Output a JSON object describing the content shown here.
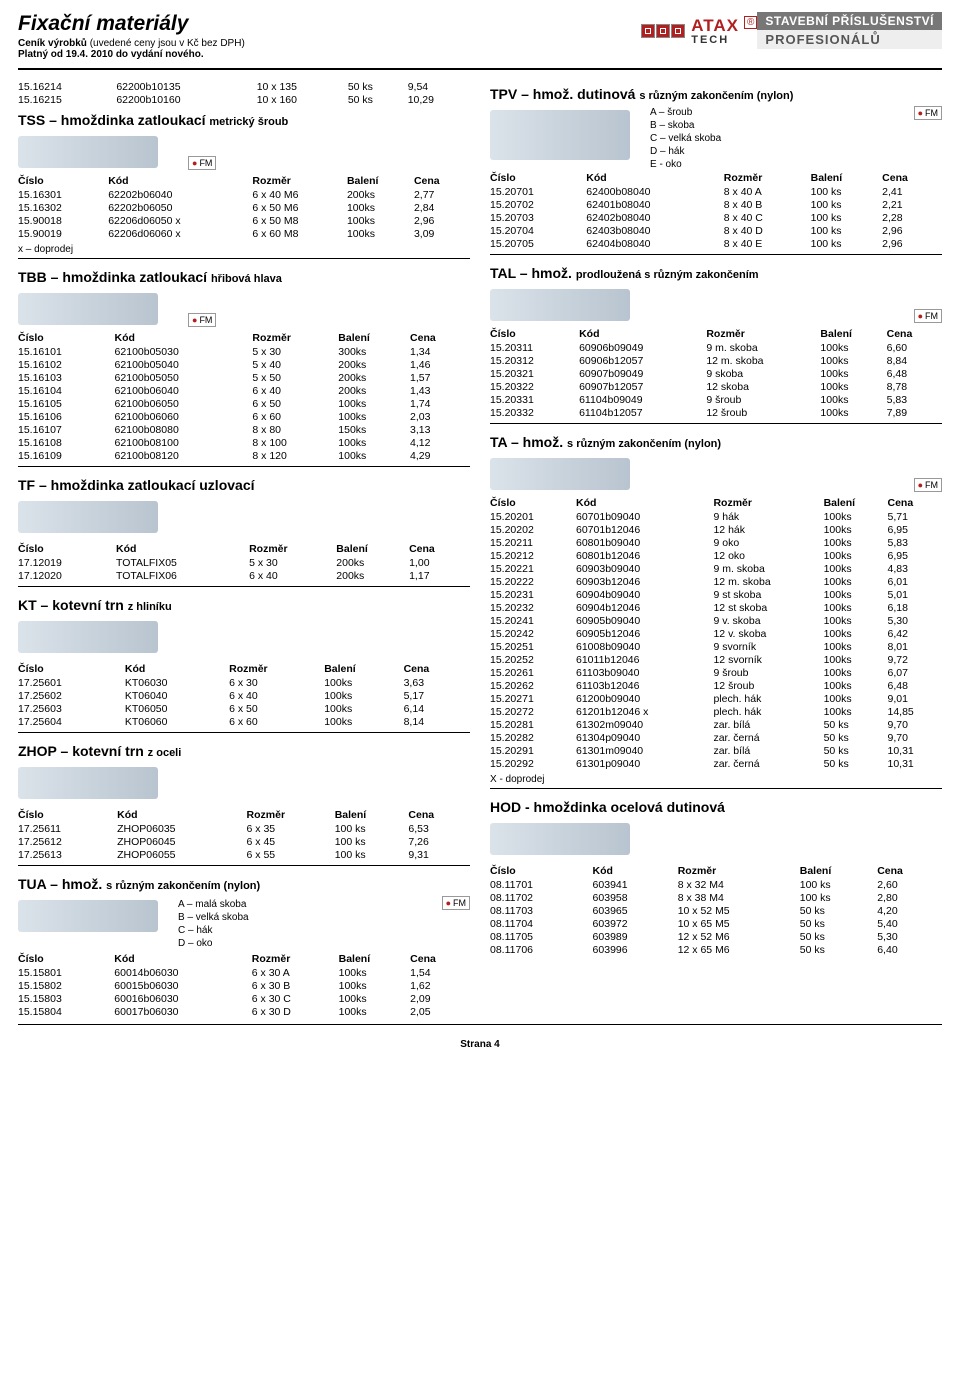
{
  "header": {
    "title": "Fixační materiály",
    "subtitle_bold": "Ceník výrobků",
    "subtitle_note": "(uvedené ceny jsou v Kč bez DPH)",
    "valid": "Platný od 19.4. 2010 do vydání nového.",
    "brand": "ATAX",
    "brand_sub": "TECH",
    "tag_top": "STAVEBNÍ PŘÍSLUŠENSTVÍ",
    "tag_bot": "PROFESIONÁLŮ",
    "reg": "®"
  },
  "cols": {
    "cislo": "Číslo",
    "kod": "Kód",
    "rozmer": "Rozměr",
    "baleni": "Balení",
    "cena": "Cena"
  },
  "footer": "Strana 4",
  "fm": "FM",
  "left": {
    "pre_rows": [
      [
        "15.16214",
        "62200b10135",
        "10 x 135",
        "50 ks",
        "9,54"
      ],
      [
        "15.16215",
        "62200b10160",
        "10 x 160",
        "50 ks",
        "10,29"
      ]
    ],
    "tss": {
      "title": "TSS – hmoždinka zatloukací",
      "suffix": "metrický šroub",
      "rows": [
        [
          "15.16301",
          "62202b06040",
          "6 x 40 M6",
          "200ks",
          "2,77"
        ],
        [
          "15.16302",
          "62202b06050",
          "6 x 50 M6",
          "100ks",
          "2,84"
        ],
        [
          "15.90018",
          "62206d06050  x",
          "6 x 50 M8",
          "100ks",
          "2,96"
        ],
        [
          "15.90019",
          "62206d06060  x",
          "6 x 60 M8",
          "100ks",
          "3,09"
        ]
      ],
      "note": "x – doprodej"
    },
    "tbb": {
      "title": "TBB – hmoždinka zatloukací",
      "suffix": "hřibová hlava",
      "rows": [
        [
          "15.16101",
          "62100b05030",
          "5 x 30",
          "300ks",
          "1,34"
        ],
        [
          "15.16102",
          "62100b05040",
          "5 x 40",
          "200ks",
          "1,46"
        ],
        [
          "15.16103",
          "62100b05050",
          "5 x 50",
          "200ks",
          "1,57"
        ],
        [
          "15.16104",
          "62100b06040",
          "6 x 40",
          "200ks",
          "1,43"
        ],
        [
          "15.16105",
          "62100b06050",
          "6 x 50",
          "100ks",
          "1,74"
        ],
        [
          "15.16106",
          "62100b06060",
          "6 x 60",
          "100ks",
          "2,03"
        ],
        [
          "15.16107",
          "62100b08080",
          "8 x 80",
          "150ks",
          "3,13"
        ],
        [
          "15.16108",
          "62100b08100",
          "8 x 100",
          "100ks",
          "4,12"
        ],
        [
          "15.16109",
          "62100b08120",
          "8 x 120",
          "100ks",
          "4,29"
        ]
      ]
    },
    "tf": {
      "title": "TF – hmoždinka zatloukací uzlovací",
      "rows": [
        [
          "17.12019",
          "TOTALFIX05",
          "5 x 30",
          "200ks",
          "1,00"
        ],
        [
          "17.12020",
          "TOTALFIX06",
          "6 x 40",
          "200ks",
          "1,17"
        ]
      ]
    },
    "kt": {
      "title": "KT – kotevní trn",
      "suffix": "z hliníku",
      "rows": [
        [
          "17.25601",
          "KT06030",
          "6 x 30",
          "100ks",
          "3,63"
        ],
        [
          "17.25602",
          "KT06040",
          "6 x 40",
          "100ks",
          "5,17"
        ],
        [
          "17.25603",
          "KT06050",
          "6 x 50",
          "100ks",
          "6,14"
        ],
        [
          "17.25604",
          "KT06060",
          "6 x 60",
          "100ks",
          "8,14"
        ]
      ]
    },
    "zhop": {
      "title": "ZHOP – kotevní trn",
      "suffix": "z oceli",
      "rows": [
        [
          "17.25611",
          "ZHOP06035",
          "6 x 35",
          "100 ks",
          "6,53"
        ],
        [
          "17.25612",
          "ZHOP06045",
          "6 x 45",
          "100 ks",
          "7,26"
        ],
        [
          "17.25613",
          "ZHOP06055",
          "6 x 55",
          "100 ks",
          "9,31"
        ]
      ]
    },
    "tua": {
      "title": "TUA – hmož.",
      "suffix": "s různým zakončením (nylon)",
      "legend": [
        "A – malá skoba",
        "B – velká skoba",
        "C – hák",
        "D – oko"
      ],
      "rows": [
        [
          "15.15801",
          "60014b06030",
          "6 x 30 A",
          "100ks",
          "1,54"
        ],
        [
          "15.15802",
          "60015b06030",
          "6 x 30 B",
          "100ks",
          "1,62"
        ],
        [
          "15.15803",
          "60016b06030",
          "6 x 30 C",
          "100ks",
          "2,09"
        ],
        [
          "15.15804",
          "60017b06030",
          "6 x 30 D",
          "100ks",
          "2,05"
        ]
      ]
    }
  },
  "right": {
    "tpv": {
      "title": "TPV – hmož. dutinová",
      "suffix": "s různým zakončením (nylon)",
      "legend": [
        "A – šroub",
        "B – skoba",
        "C – velká skoba",
        "D – hák",
        "E  -  oko"
      ],
      "rows": [
        [
          "15.20701",
          "62400b08040",
          "8 x 40 A",
          "100 ks",
          "2,41"
        ],
        [
          "15.20702",
          "62401b08040",
          "8 x 40 B",
          "100 ks",
          "2,21"
        ],
        [
          "15.20703",
          "62402b08040",
          "8 x 40 C",
          "100 ks",
          "2,28"
        ],
        [
          "15.20704",
          "62403b08040",
          "8 x 40 D",
          "100 ks",
          "2,96"
        ],
        [
          "15.20705",
          "62404b08040",
          "8 x 40 E",
          "100 ks",
          "2,96"
        ]
      ]
    },
    "tal": {
      "title": "TAL – hmož.",
      "suffix": "prodloužená s různým zakončením",
      "rows": [
        [
          "15.20311",
          "60906b09049",
          "9 m. skoba",
          "100ks",
          "6,60"
        ],
        [
          "15.20312",
          "60906b12057",
          "12 m. skoba",
          "100ks",
          "8,84"
        ],
        [
          "15.20321",
          "60907b09049",
          "9 skoba",
          "100ks",
          "6,48"
        ],
        [
          "15.20322",
          "60907b12057",
          "12 skoba",
          "100ks",
          "8,78"
        ],
        [
          "15.20331",
          "61104b09049",
          "9 šroub",
          "100ks",
          "5,83"
        ],
        [
          "15.20332",
          "61104b12057",
          "12 šroub",
          "100ks",
          "7,89"
        ]
      ]
    },
    "ta": {
      "title": "TA – hmož.",
      "suffix": "s různým zakončením (nylon)",
      "rows": [
        [
          "15.20201",
          "60701b09040",
          "9 hák",
          "100ks",
          "5,71"
        ],
        [
          "15.20202",
          "60701b12046",
          "12 hák",
          "100ks",
          "6,95"
        ],
        [
          "15.20211",
          "60801b09040",
          "9 oko",
          "100ks",
          "5,83"
        ],
        [
          "15.20212",
          "60801b12046",
          "12 oko",
          "100ks",
          "6,95"
        ],
        [
          "15.20221",
          "60903b09040",
          "9 m. skoba",
          "100ks",
          "4,83"
        ],
        [
          "15.20222",
          "60903b12046",
          "12 m. skoba",
          "100ks",
          "6,01"
        ],
        [
          "15.20231",
          "60904b09040",
          "9 st skoba",
          "100ks",
          "5,01"
        ],
        [
          "15.20232",
          "60904b12046",
          "12 st skoba",
          "100ks",
          "6,18"
        ],
        [
          "15.20241",
          "60905b09040",
          "9 v. skoba",
          "100ks",
          "5,30"
        ],
        [
          "15.20242",
          "60905b12046",
          "12 v. skoba",
          "100ks",
          "6,42"
        ],
        [
          "15.20251",
          "61008b09040",
          "9 svorník",
          "100ks",
          "8,01"
        ],
        [
          "15.20252",
          "61011b12046",
          "12 svorník",
          "100ks",
          "9,72"
        ],
        [
          "15.20261",
          "61103b09040",
          "9 šroub",
          "100ks",
          "6,07"
        ],
        [
          "15.20262",
          "61103b12046",
          "12 šroub",
          "100ks",
          "6,48"
        ],
        [
          "15.20271",
          "61200b09040",
          "plech. hák",
          "100ks",
          "9,01"
        ],
        [
          "15.20272",
          "61201b12046  x",
          "plech. hák",
          "100ks",
          "14,85"
        ],
        [
          "15.20281",
          "61302m09040",
          "zar. bílá",
          "50 ks",
          "9,70"
        ],
        [
          "15.20282",
          "61304p09040",
          "zar. černá",
          "50 ks",
          "9,70"
        ],
        [
          "15.20291",
          "61301m09040",
          "zar. bílá",
          "50 ks",
          "10,31"
        ],
        [
          "15.20292",
          "61301p09040",
          "zar. černá",
          "50 ks",
          "10,31"
        ]
      ],
      "note": "X - doprodej"
    },
    "hod": {
      "title": "HOD - hmoždinka ocelová dutinová",
      "rows": [
        [
          "08.11701",
          "603941",
          "  8 x 32 M4",
          "100 ks",
          "2,60"
        ],
        [
          "08.11702",
          "603958",
          "  8 x 38 M4",
          "100 ks",
          "2,80"
        ],
        [
          "08.11703",
          "603965",
          "10 x 52 M5",
          "50 ks",
          "4,20"
        ],
        [
          "08.11704",
          "603972",
          "10 x 65 M5",
          "50 ks",
          "5,40"
        ],
        [
          "08.11705",
          "603989",
          "12 x 52 M6",
          "50 ks",
          "5,30"
        ],
        [
          "08.11706",
          "603996",
          "12 x 65 M6",
          "50 ks",
          "6,40"
        ]
      ]
    }
  }
}
